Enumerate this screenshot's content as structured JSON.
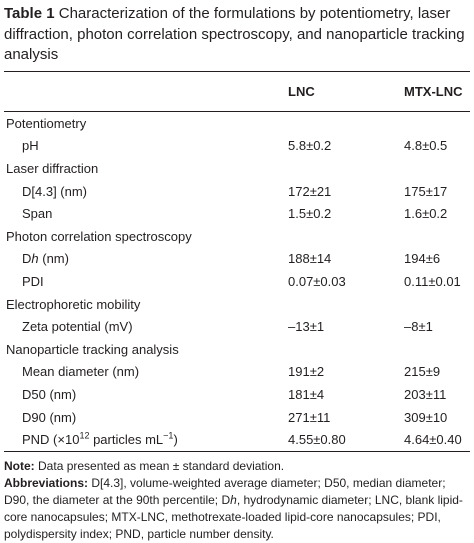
{
  "caption": {
    "label": "Table 1",
    "text": "Characterization of the formulations by potentiometry, laser diffraction, photon correlation spectroscopy, and nanoparticle tracking analysis"
  },
  "table": {
    "header": [
      "LNC",
      "MTX-LNC"
    ],
    "sections": [
      {
        "title": "Potentiometry",
        "rows": [
          {
            "label": [
              "pH"
            ],
            "values": [
              "5.8±0.2",
              "4.8±0.5"
            ]
          }
        ]
      },
      {
        "title": "Laser diffraction",
        "rows": [
          {
            "label": [
              "D[4.3] (nm)"
            ],
            "values": [
              "172±21",
              "175±17"
            ]
          },
          {
            "label": [
              "Span"
            ],
            "values": [
              "1.5±0.2",
              "1.6±0.2"
            ]
          }
        ]
      },
      {
        "title": "Photon correlation spectroscopy",
        "rows": [
          {
            "label": [
              "D",
              {
                "text": "h",
                "style": "italic"
              },
              " (nm)"
            ],
            "values": [
              "188±14",
              "194±6"
            ]
          },
          {
            "label": [
              "PDI"
            ],
            "values": [
              "0.07±0.03",
              "0.11±0.01"
            ]
          }
        ]
      },
      {
        "title": "Electrophoretic mobility",
        "rows": [
          {
            "label": [
              "Zeta potential (mV)"
            ],
            "values": [
              "–13±1",
              "–8±1"
            ]
          }
        ]
      },
      {
        "title": "Nanoparticle tracking analysis",
        "rows": [
          {
            "label": [
              "Mean diameter (nm)"
            ],
            "values": [
              "191±2",
              "215±9"
            ]
          },
          {
            "label": [
              "D50 (nm)"
            ],
            "values": [
              "181±4",
              "203±11"
            ]
          },
          {
            "label": [
              "D90 (nm)"
            ],
            "values": [
              "271±11",
              "309±10"
            ]
          },
          {
            "label": [
              "PND (×10",
              {
                "text": "12",
                "style": "sup"
              },
              " particles mL",
              {
                "text": "−1",
                "style": "sup"
              },
              ")"
            ],
            "values": [
              "4.55±0.80",
              "4.64±0.40"
            ]
          }
        ]
      }
    ]
  },
  "notes": [
    {
      "heading": "Note:",
      "parts": [
        "Data presented as mean ± standard deviation."
      ]
    },
    {
      "heading": "Abbreviations:",
      "parts": [
        "D[4.3], volume-weighted average diameter; D50, median diameter; D90, the diameter at the 90th percentile; D",
        {
          "text": "h",
          "style": "italic"
        },
        ", hydrodynamic diameter; LNC, blank lipid-core nanocapsules; MTX-LNC, methotrexate-loaded lipid-core nanocapsules; PDI, polydispersity index; PND, particle number density."
      ]
    }
  ]
}
